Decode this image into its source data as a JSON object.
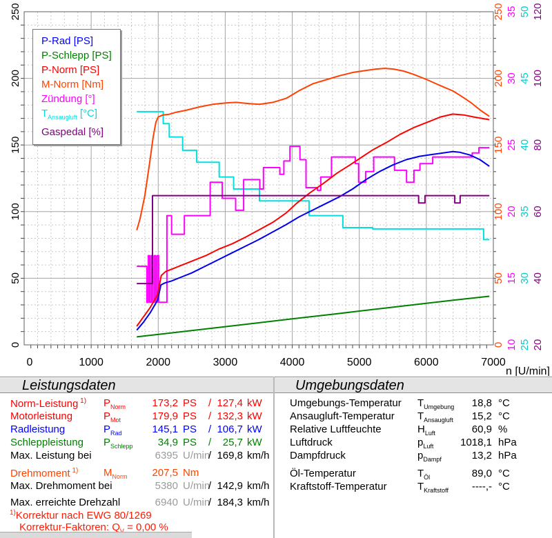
{
  "chart_data": {
    "type": "line",
    "title": "",
    "xlabel": "n [U/min]",
    "x_range": [
      0,
      7000
    ],
    "x_major": 1000,
    "x_minor": 200,
    "grid": "on",
    "legend_position": "top-left",
    "left_axis": {
      "color": "#000000",
      "ticks": [
        0,
        50,
        100,
        150,
        200,
        250
      ],
      "min": 0,
      "max": 250
    },
    "right_axes": [
      {
        "name": "M-Norm [Nm]",
        "color": "#ff4400",
        "min": 0,
        "max": 250,
        "ticks": [
          0,
          50,
          100,
          150,
          200,
          250
        ]
      },
      {
        "name": "Zündung [°]",
        "color": "#ff00ff",
        "min": 10,
        "max": 35,
        "ticks": [
          10,
          15,
          20,
          25,
          30,
          35
        ]
      },
      {
        "name": "T-Ansaugluft [°C]",
        "color": "#00cccc",
        "min": 25,
        "max": 50,
        "ticks": [
          25,
          30,
          35,
          40,
          45,
          50
        ]
      },
      {
        "name": "Gaspedal [%]",
        "color": "#800080",
        "min": 20,
        "max": 120,
        "ticks": [
          20,
          40,
          60,
          80,
          100,
          120
        ]
      }
    ],
    "legend": [
      {
        "pre": "P-Rad",
        "sub": "",
        "post": " [PS]",
        "color": "#0000ff"
      },
      {
        "pre": "P-Schlepp",
        "sub": "",
        "post": " [PS]",
        "color": "#008000"
      },
      {
        "pre": "P-Norm",
        "sub": "",
        "post": " [PS]",
        "color": "#ff0000"
      },
      {
        "pre": "M-Norm",
        "sub": "",
        "post": " [Nm]",
        "color": "#ff4400"
      },
      {
        "pre": "Zündung",
        "sub": "",
        "post": " [°]",
        "color": "#ff00ff"
      },
      {
        "pre": "T",
        "sub": "Ansaugluft",
        "post": " [°C]",
        "color": "#00dddd"
      },
      {
        "pre": "Gaspedal",
        "sub": "",
        "post": " [%]",
        "color": "#800080"
      }
    ],
    "series": [
      {
        "name": "T-Ansaugluft",
        "color": "#00e0e0",
        "mode": "step",
        "axis": {
          "min": 25,
          "max": 50
        },
        "end": 6940,
        "points": [
          [
            1680,
            42.5
          ],
          [
            2075,
            41.6
          ],
          [
            2165,
            40.6
          ],
          [
            2365,
            39.6
          ],
          [
            2575,
            38.7
          ],
          [
            2910,
            37.6
          ],
          [
            3125,
            36.7
          ],
          [
            3510,
            35.8
          ],
          [
            4250,
            34.7
          ],
          [
            4755,
            33.8
          ],
          [
            5200,
            33.7
          ],
          [
            6855,
            32.9
          ]
        ]
      },
      {
        "name": "Zündung",
        "color": "#ff00ff",
        "mode": "step",
        "axis": {
          "min": 10,
          "max": 35
        },
        "end": 6940,
        "points": [
          [
            1680,
            15.9
          ],
          [
            1830,
            13.2
          ],
          [
            1852,
            16.7
          ],
          [
            1874,
            13.2
          ],
          [
            1896,
            16.7
          ],
          [
            1918,
            13.2
          ],
          [
            1940,
            16.7
          ],
          [
            1962,
            13.2
          ],
          [
            1984,
            16.7
          ],
          [
            2006,
            13.2
          ],
          [
            2130,
            19.7
          ],
          [
            2200,
            18.3
          ],
          [
            2390,
            19.7
          ],
          [
            2775,
            22.2
          ],
          [
            2955,
            21.0
          ],
          [
            3155,
            20.1
          ],
          [
            3275,
            22.4
          ],
          [
            3515,
            21.7
          ],
          [
            3570,
            23.3
          ],
          [
            3815,
            22.8
          ],
          [
            3875,
            23.8
          ],
          [
            3965,
            24.9
          ],
          [
            4115,
            23.9
          ],
          [
            4205,
            21.8
          ],
          [
            4375,
            21.6
          ],
          [
            4425,
            22.6
          ],
          [
            4585,
            24.1
          ],
          [
            4940,
            23.6
          ],
          [
            4990,
            22.2
          ],
          [
            5095,
            23.0
          ],
          [
            5215,
            24.1
          ],
          [
            5525,
            23.1
          ],
          [
            5705,
            22.2
          ],
          [
            5815,
            23.1
          ],
          [
            5905,
            23.6
          ],
          [
            6095,
            24.1
          ],
          [
            6685,
            24.4
          ],
          [
            6785,
            24.8
          ]
        ]
      },
      {
        "name": "P-Schlepp",
        "color": "#008000",
        "mode": "line",
        "axis": {
          "min": 0,
          "max": 250
        },
        "end": 6940,
        "points": [
          [
            1680,
            6
          ],
          [
            2200,
            9
          ],
          [
            2800,
            12.5
          ],
          [
            3400,
            16
          ],
          [
            4000,
            19.5
          ],
          [
            4600,
            23
          ],
          [
            5200,
            26.5
          ],
          [
            5800,
            30
          ],
          [
            6400,
            33.5
          ],
          [
            6940,
            36.5
          ]
        ]
      },
      {
        "name": "P-Rad",
        "color": "#0000ee",
        "mode": "line",
        "axis": {
          "min": 0,
          "max": 250
        },
        "end": 6940,
        "points": [
          [
            1680,
            11
          ],
          [
            1780,
            17
          ],
          [
            1880,
            24
          ],
          [
            1950,
            30
          ],
          [
            1995,
            34
          ],
          [
            2015,
            39
          ],
          [
            2040,
            45
          ],
          [
            2100,
            46.5
          ],
          [
            2200,
            48
          ],
          [
            2350,
            51
          ],
          [
            2500,
            54
          ],
          [
            2700,
            59
          ],
          [
            2900,
            64
          ],
          [
            3100,
            69
          ],
          [
            3300,
            74
          ],
          [
            3500,
            79
          ],
          [
            3700,
            84.5
          ],
          [
            3900,
            90
          ],
          [
            4100,
            96
          ],
          [
            4300,
            101
          ],
          [
            4500,
            106
          ],
          [
            4700,
            111
          ],
          [
            4900,
            117
          ],
          [
            5100,
            124
          ],
          [
            5300,
            130
          ],
          [
            5500,
            135
          ],
          [
            5700,
            139
          ],
          [
            5900,
            141.5
          ],
          [
            6100,
            143
          ],
          [
            6250,
            144
          ],
          [
            6395,
            145.1
          ],
          [
            6500,
            144.5
          ],
          [
            6650,
            142.5
          ],
          [
            6800,
            139
          ],
          [
            6940,
            134
          ]
        ]
      },
      {
        "name": "P-Norm",
        "color": "#ff0000",
        "mode": "line",
        "axis": {
          "min": 0,
          "max": 250
        },
        "end": 6940,
        "points": [
          [
            1680,
            14
          ],
          [
            1780,
            21
          ],
          [
            1880,
            28
          ],
          [
            1950,
            34
          ],
          [
            1995,
            38
          ],
          [
            2015,
            44
          ],
          [
            2045,
            52
          ],
          [
            2110,
            55
          ],
          [
            2210,
            57
          ],
          [
            2360,
            60
          ],
          [
            2510,
            63
          ],
          [
            2710,
            67
          ],
          [
            2910,
            72
          ],
          [
            3110,
            76
          ],
          [
            3310,
            81
          ],
          [
            3530,
            87
          ],
          [
            3710,
            92
          ],
          [
            3910,
            99
          ],
          [
            4060,
            106
          ],
          [
            4260,
            114
          ],
          [
            4460,
            121
          ],
          [
            4670,
            129
          ],
          [
            4860,
            135
          ],
          [
            5010,
            140
          ],
          [
            5190,
            146
          ],
          [
            5410,
            152
          ],
          [
            5610,
            158
          ],
          [
            5810,
            163
          ],
          [
            6010,
            167
          ],
          [
            6210,
            171
          ],
          [
            6395,
            173.2
          ],
          [
            6560,
            172.5
          ],
          [
            6710,
            171
          ],
          [
            6940,
            169
          ]
        ]
      },
      {
        "name": "M-Norm",
        "color": "#ff4000",
        "mode": "line",
        "axis": {
          "min": 0,
          "max": 250
        },
        "end": 6940,
        "points": [
          [
            1680,
            86
          ],
          [
            1730,
            95
          ],
          [
            1800,
            112
          ],
          [
            1870,
            136
          ],
          [
            1925,
            156
          ],
          [
            1965,
            167
          ],
          [
            2000,
            171
          ],
          [
            2070,
            172.5
          ],
          [
            2160,
            173
          ],
          [
            2260,
            174.5
          ],
          [
            2410,
            176
          ],
          [
            2610,
            178.5
          ],
          [
            2810,
            180.5
          ],
          [
            3010,
            181.5
          ],
          [
            3160,
            182
          ],
          [
            3360,
            181
          ],
          [
            3510,
            180.5
          ],
          [
            3710,
            182
          ],
          [
            3910,
            185
          ],
          [
            4110,
            191
          ],
          [
            4310,
            196
          ],
          [
            4510,
            199
          ],
          [
            4710,
            202
          ],
          [
            4910,
            204.5
          ],
          [
            5110,
            206
          ],
          [
            5250,
            207
          ],
          [
            5380,
            207.5
          ],
          [
            5510,
            207
          ],
          [
            5660,
            205.5
          ],
          [
            5810,
            203
          ],
          [
            6010,
            199
          ],
          [
            6210,
            194.5
          ],
          [
            6400,
            190.5
          ],
          [
            6510,
            187
          ],
          [
            6660,
            182
          ],
          [
            6810,
            176
          ],
          [
            6940,
            171.5
          ]
        ]
      },
      {
        "name": "Gaspedal",
        "color": "#800080",
        "mode": "step",
        "axis": {
          "min": 20,
          "max": 120
        },
        "end": 6940,
        "points": [
          [
            1680,
            38.4
          ],
          [
            1915,
            64.8
          ],
          [
            5885,
            62.6
          ],
          [
            5980,
            64.8
          ],
          [
            6425,
            62.6
          ],
          [
            6505,
            64.8
          ]
        ]
      }
    ]
  },
  "x_axis_title": "n [U/min]",
  "headers": {
    "left": "Leistungsdaten",
    "right": "Umgebungsdaten"
  },
  "tables": {
    "left_rows": [
      {
        "label": "Norm-Leistung",
        "sup": "1)",
        "sym": "P",
        "sym_sub": "Norm",
        "v1": "173,2",
        "u1": "PS",
        "slash": "/",
        "v2": "127,4",
        "u2": "kW",
        "color": "#ff0000"
      },
      {
        "label": "Motorleistung",
        "sym": "P",
        "sym_sub": "Mot",
        "v1": "179,9",
        "u1": "PS",
        "slash": "/",
        "v2": "132,3",
        "u2": "kW",
        "color": "#ff0000"
      },
      {
        "label": "Radleistung",
        "sym": "P",
        "sym_sub": "Rad",
        "v1": "145,1",
        "u1": "PS",
        "slash": "/",
        "v2": "106,7",
        "u2": "kW",
        "color": "#0000ff"
      },
      {
        "label": "Schleppleistung",
        "sym": "P",
        "sym_sub": "Schlepp",
        "v1": "34,9",
        "u1": "PS",
        "slash": "/",
        "v2": "25,7",
        "u2": "kW",
        "color": "#008000"
      },
      {
        "label": "Max. Leistung bei",
        "v1": "6395",
        "u1": "U/min",
        "v1_muted": true,
        "slash": "/",
        "v2": "169,8",
        "u2": "km/h",
        "color": "#000000"
      },
      {
        "label": "Drehmoment",
        "sup": "1)",
        "sym": "M",
        "sym_sub": "Norm",
        "v1": "207,5",
        "u1": "Nm",
        "color": "#ff4400",
        "gap_before": 6
      },
      {
        "label": "Max. Drehmoment bei",
        "v1": "5380",
        "u1": "U/min",
        "v1_muted": true,
        "slash": "/",
        "v2": "142,9",
        "u2": "km/h",
        "color": "#000000"
      },
      {
        "label": "Max. erreichte Drehzahl",
        "v1": "6940",
        "u1": "U/min",
        "v1_muted": true,
        "slash": "/",
        "v2": "184,3",
        "u2": "km/h",
        "color": "#000000",
        "gap_before": 5
      }
    ],
    "right_rows": [
      {
        "label": "Umgebungs-Temperatur",
        "sym": "T",
        "sym_sub": "Umgebung",
        "v1": "18,8",
        "u1": "°C",
        "color": "#000000"
      },
      {
        "label": "Ansaugluft-Temperatur",
        "sym": "T",
        "sym_sub": "Ansaugluft",
        "v1": "15,2",
        "u1": "°C",
        "color": "#000000"
      },
      {
        "label": "Relative Luftfeuchte",
        "sym": "H",
        "sym_sub": "Luft",
        "v1": "60,9",
        "u1": "%",
        "color": "#000000"
      },
      {
        "label": "Luftdruck",
        "sym": "p",
        "sym_sub": "Luft",
        "v1": "1018,1",
        "u1": "hPa",
        "color": "#000000"
      },
      {
        "label": "Dampfdruck",
        "sym": "p",
        "sym_sub": "Dampf",
        "v1": "13,2",
        "u1": "hPa",
        "color": "#000000"
      },
      {
        "label": "Öl-Temperatur",
        "sym": "T",
        "sym_sub": "Öl",
        "v1": "89,0",
        "u1": "°C",
        "color": "#000000",
        "gap_before": 7
      },
      {
        "label": "Kraftstoff-Temperatur",
        "sym": "T",
        "sym_sub": "Kraftstoff",
        "v1": "----,-",
        "u1": "°C",
        "color": "#000000"
      }
    ]
  },
  "footnotes": {
    "sup": "1)",
    "line1": "Korrektur nach EWG 80/1269",
    "line2_pre": "Korrektur-Faktoren: Q",
    "line2_sub": "V",
    "line2_post": " =   0,00 %"
  }
}
